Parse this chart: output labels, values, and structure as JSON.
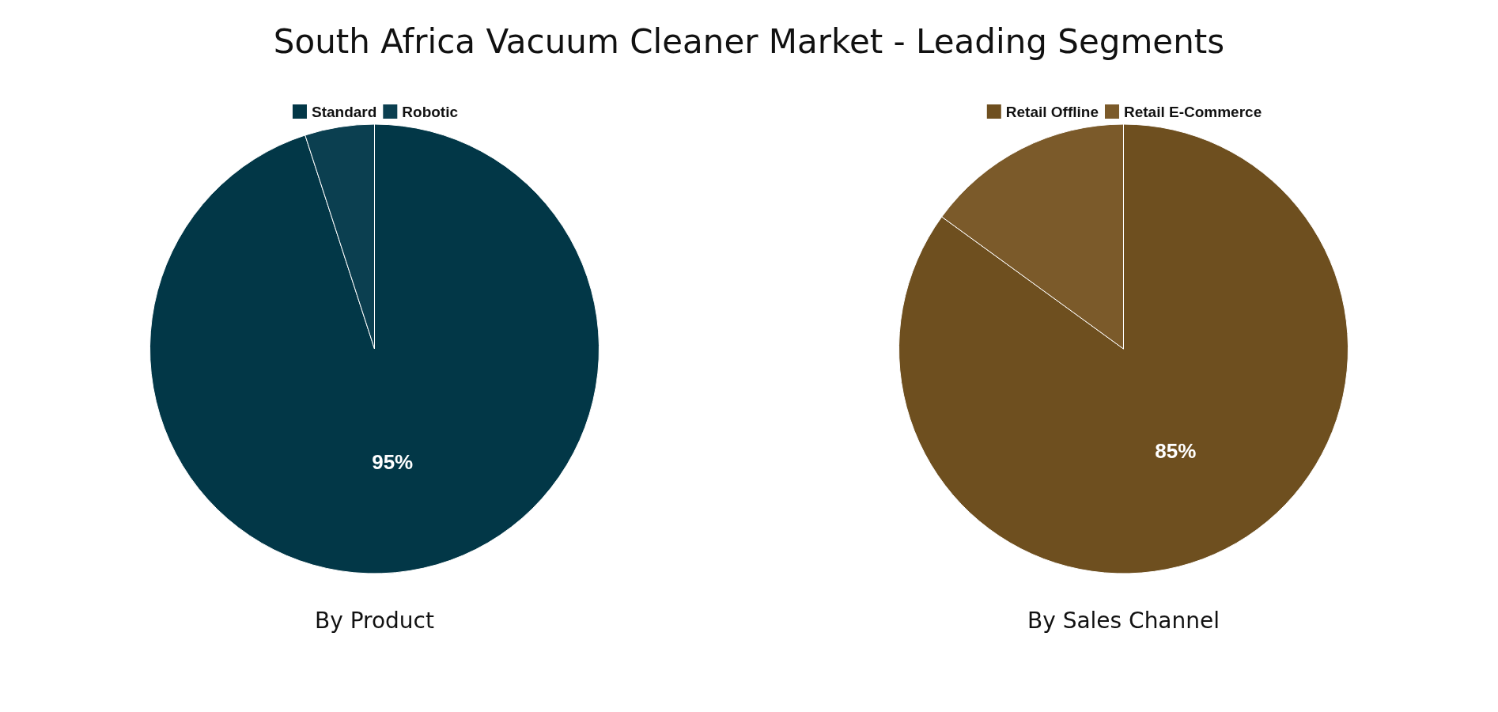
{
  "chart_data": [
    {
      "type": "pie",
      "title": "South Africa Vacuum Cleaner Market - Leading Segments",
      "subtitle": "By Product",
      "categories": [
        "Standard",
        "Robotic"
      ],
      "values": [
        95,
        5
      ],
      "colors": [
        "#023747",
        "#0b3f50"
      ],
      "value_labels": [
        "95%",
        null
      ],
      "legend": "top"
    },
    {
      "type": "pie",
      "subtitle": "By Sales Channel",
      "categories": [
        "Retail Offline",
        "Retail E-Commerce"
      ],
      "values": [
        85,
        15
      ],
      "colors": [
        "#6e4f1f",
        "#7b5a2a"
      ],
      "value_labels": [
        "85%",
        null
      ],
      "legend": "top"
    }
  ]
}
